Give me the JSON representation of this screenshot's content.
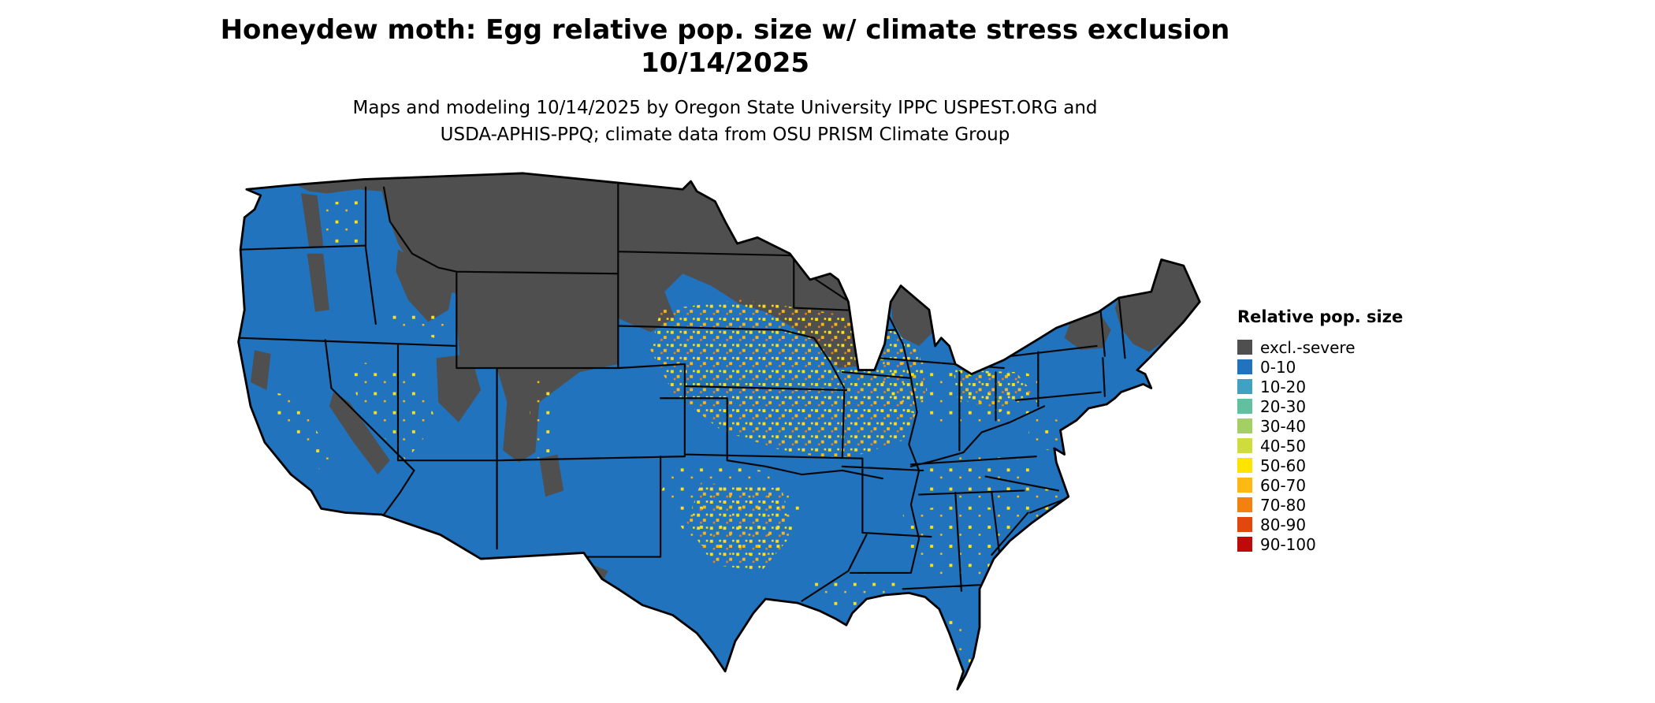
{
  "title": {
    "line1": "Honeydew moth: Egg relative pop. size w/ climate stress exclusion",
    "line2": "10/14/2025"
  },
  "subtitle": {
    "line1": "Maps and modeling 10/14/2025 by Oregon State University IPPC USPEST.ORG and",
    "line2": "USDA-APHIS-PPQ; climate data from OSU PRISM Climate Group"
  },
  "map": {
    "region": "Continental United States",
    "type": "raster choropleth with state borders",
    "dominant_class": "0-10",
    "excluded_class": "excl.-severe"
  },
  "legend": {
    "title": "Relative pop. size",
    "items": [
      {
        "label": "excl.-severe",
        "color": "#4f4f4f"
      },
      {
        "label": "0-10",
        "color": "#2173bd"
      },
      {
        "label": "10-20",
        "color": "#41a1c2"
      },
      {
        "label": "20-30",
        "color": "#62bfa0"
      },
      {
        "label": "30-40",
        "color": "#a3cf63"
      },
      {
        "label": "40-50",
        "color": "#cfdd3c"
      },
      {
        "label": "50-60",
        "color": "#ffe400"
      },
      {
        "label": "60-70",
        "color": "#fdb913"
      },
      {
        "label": "70-80",
        "color": "#f2820d"
      },
      {
        "label": "80-90",
        "color": "#e2470e"
      },
      {
        "label": "90-100",
        "color": "#c00a0a"
      }
    ]
  },
  "colors": {
    "background": "#ffffff",
    "map_base": "#2173bd",
    "excluded": "#4f4f4f",
    "state_border": "#060606",
    "outline": "#000000",
    "speckle_yellow": "#ffe11a",
    "speckle_gold": "#fdb913",
    "speckle_orange": "#f2820d"
  }
}
